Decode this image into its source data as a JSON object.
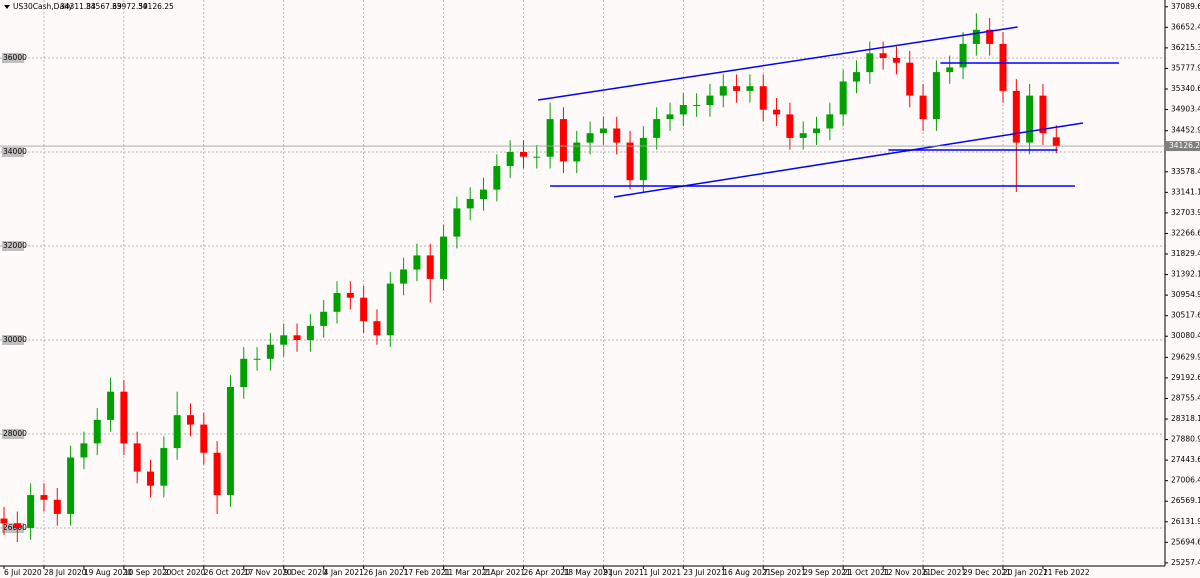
{
  "chart_data": {
    "type": "candlestick",
    "title": "US30Cash,Daily",
    "categories": [
      "6 Jul 2020",
      null,
      null,
      "28 Jul 2020",
      null,
      null,
      "19 Aug 2020",
      null,
      null,
      "10 Sep 2020",
      null,
      null,
      "2 Oct 2020",
      null,
      null,
      "26 Oct 2020",
      null,
      null,
      "17 Nov 2020",
      null,
      null,
      "9 Dec 2020",
      null,
      null,
      "4 Jan 2021",
      null,
      null,
      "26 Jan 2021",
      null,
      null,
      "17 Feb 2021",
      null,
      null,
      "11 Mar 2021",
      null,
      null,
      "2 Apr 2021",
      null,
      null,
      "26 Apr 2021",
      null,
      null,
      "18 May 2021",
      null,
      null,
      "9 Jun 2021",
      null,
      null,
      "1 Jul 2021",
      null,
      null,
      "23 Jul 2021",
      null,
      null,
      "16 Aug 2021",
      null,
      null,
      "7 Sep 2021",
      null,
      null,
      "29 Sep 2021",
      null,
      null,
      "21 Oct 2021",
      null,
      null,
      "12 Nov 2021",
      null,
      null,
      "6 Dec 2021",
      null,
      null,
      "29 Dec 2021",
      null,
      null,
      "20 Jan 2022",
      null,
      null,
      "11 Feb 2022",
      null
    ],
    "open": [
      26200,
      26100,
      26000,
      26700,
      26600,
      26300,
      27500,
      27800,
      28300,
      28900,
      27800,
      27200,
      26900,
      27700,
      28400,
      28200,
      27600,
      26700,
      29000,
      29600,
      29600,
      29900,
      30100,
      30000,
      30300,
      30600,
      31000,
      30900,
      30400,
      30100,
      31200,
      31500,
      31800,
      31300,
      32200,
      32800,
      33000,
      33200,
      33700,
      34000,
      33900,
      33900,
      34700,
      33800,
      34200,
      34400,
      34500,
      34200,
      33400,
      34300,
      34700,
      34800,
      35000,
      35000,
      35200,
      35400,
      35300,
      35400,
      34900,
      34800,
      34300,
      34400,
      34500,
      34800,
      35500,
      35700,
      36100,
      36000,
      35900,
      35200,
      34700,
      35700,
      35800,
      36300,
      36600,
      36300,
      35300,
      34200,
      35200,
      34311.83
    ],
    "high": [
      26450,
      26350,
      26950,
      26950,
      26850,
      27750,
      28050,
      28550,
      29200,
      29150,
      28050,
      27450,
      27950,
      28900,
      28650,
      28450,
      27850,
      29250,
      29850,
      29850,
      30150,
      30350,
      30350,
      30550,
      30850,
      31250,
      31250,
      31150,
      30650,
      31450,
      31750,
      32050,
      32050,
      32450,
      33050,
      33250,
      33450,
      33950,
      34250,
      34250,
      34150,
      35050,
      34950,
      34450,
      34650,
      34750,
      34750,
      34450,
      34550,
      34950,
      35050,
      35250,
      35250,
      35450,
      35650,
      35650,
      35650,
      35650,
      35150,
      35050,
      34650,
      34750,
      35050,
      35750,
      35950,
      36350,
      36350,
      36250,
      36150,
      35450,
      35950,
      36050,
      36550,
      36950,
      36850,
      36550,
      35550,
      35450,
      35450,
      34567.69
    ],
    "low": [
      25850,
      25700,
      25750,
      26350,
      26050,
      26050,
      27250,
      27550,
      28050,
      27550,
      26950,
      26650,
      26650,
      27450,
      27950,
      27350,
      26300,
      26450,
      28750,
      29350,
      29350,
      29650,
      29750,
      29750,
      30050,
      30350,
      30650,
      30150,
      29900,
      29850,
      30950,
      31250,
      30800,
      31050,
      31950,
      32550,
      32750,
      32950,
      33450,
      33650,
      33650,
      33650,
      33550,
      33550,
      33950,
      34150,
      33950,
      33200,
      33150,
      34050,
      34450,
      34550,
      34750,
      34750,
      34950,
      35050,
      35050,
      34650,
      34550,
      34050,
      34050,
      34150,
      34250,
      34550,
      35250,
      35450,
      35750,
      35650,
      34950,
      34450,
      34450,
      35450,
      35550,
      36050,
      36050,
      35050,
      33150,
      33950,
      34150,
      33972.59
    ],
    "close": [
      26100,
      26000,
      26700,
      26600,
      26300,
      27500,
      27800,
      28300,
      28900,
      27800,
      27200,
      26900,
      27700,
      28400,
      28200,
      27600,
      26700,
      29000,
      29600,
      29600,
      29900,
      30100,
      30000,
      30300,
      30600,
      31000,
      30900,
      30400,
      30100,
      31200,
      31500,
      31800,
      31300,
      32200,
      32800,
      33000,
      33200,
      33700,
      34000,
      33900,
      33900,
      34700,
      33800,
      34200,
      34400,
      34500,
      34200,
      33400,
      34300,
      34700,
      34800,
      35000,
      35000,
      35200,
      35400,
      35300,
      35400,
      34900,
      34800,
      34300,
      34400,
      34500,
      34800,
      35500,
      35700,
      36100,
      36000,
      35900,
      35200,
      34700,
      35700,
      35800,
      36300,
      36600,
      36300,
      35300,
      34200,
      35200,
      34400,
      34126.25
    ],
    "up_color": "#00a000",
    "down_color": "#ff0000",
    "ylim": [
      25191,
      37234
    ],
    "yticks": [
      {
        "value": 37089.65,
        "label": "37089.65"
      },
      {
        "value": 36652.49,
        "label": "36652.49"
      },
      {
        "value": 36215.33,
        "label": "36215.33"
      },
      {
        "value": 35777.9,
        "label": "35777.90"
      },
      {
        "value": 35340.65,
        "label": "35340.65"
      },
      {
        "value": 34903.4,
        "label": "34903.40"
      },
      {
        "value": 34452.9,
        "label": "34452.90"
      },
      {
        "value": 33578.4,
        "label": "33578.40"
      },
      {
        "value": 33141.15,
        "label": "33141.15"
      },
      {
        "value": 32703.9,
        "label": "32703.90"
      },
      {
        "value": 32266.65,
        "label": "32266.65"
      },
      {
        "value": 31829.4,
        "label": "31829.40"
      },
      {
        "value": 31392.15,
        "label": "31392.15"
      },
      {
        "value": 30954.9,
        "label": "30954.90"
      },
      {
        "value": 30517.65,
        "label": "30517.65"
      },
      {
        "value": 30080.4,
        "label": "30080.40"
      },
      {
        "value": 29629.9,
        "label": "29629.90"
      },
      {
        "value": 29192.65,
        "label": "29192.65"
      },
      {
        "value": 28755.4,
        "label": "28755.40"
      },
      {
        "value": 28318.15,
        "label": "28318.15"
      },
      {
        "value": 27880.9,
        "label": "27880.90"
      },
      {
        "value": 27443.65,
        "label": "27443.65"
      },
      {
        "value": 27006.4,
        "label": "27006.40"
      },
      {
        "value": 26569.15,
        "label": "26569.15"
      },
      {
        "value": 26131.9,
        "label": "26131.90"
      },
      {
        "value": 25694.65,
        "label": "25694.65"
      },
      {
        "value": 25257.4,
        "label": "25257.40"
      }
    ],
    "grid_levels": [
      26000,
      28000,
      30000,
      32000,
      34000,
      36000
    ],
    "grid": true,
    "trendlines": [
      {
        "x": [
          40.1,
          76.1
        ],
        "y": [
          35106,
          36660
        ],
        "color": "#0000ff"
      },
      {
        "x": [
          45.8,
          81.0
        ],
        "y": [
          33043,
          34617
        ],
        "color": "#0000ff"
      },
      {
        "x": [
          41.0,
          80.4
        ],
        "y": [
          33277,
          33277
        ],
        "color": "#0000ff"
      },
      {
        "x": [
          70.3,
          83.7
        ],
        "y": [
          35894,
          35894
        ],
        "color": "#0000ff"
      },
      {
        "x": [
          66.4,
          79.1
        ],
        "y": [
          34043,
          34043
        ],
        "color": "#0000ff"
      }
    ]
  }
}
